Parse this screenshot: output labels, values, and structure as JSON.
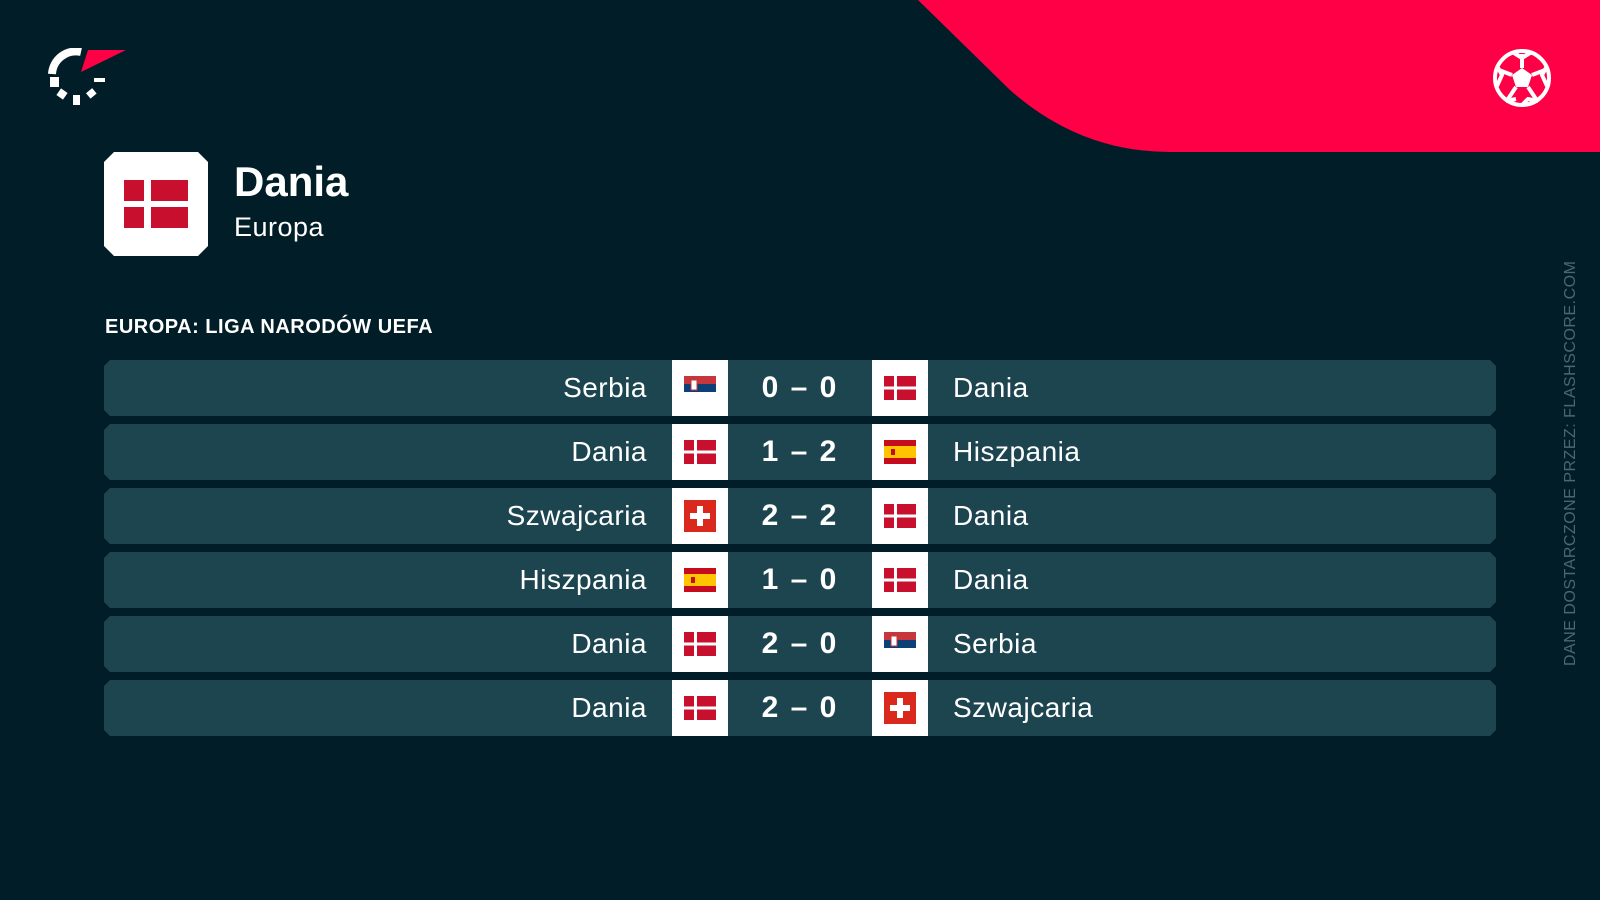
{
  "brand": {
    "accent": "#ff0046",
    "background": "#011e28",
    "row_color": "#1d4550"
  },
  "header": {
    "team": "Dania",
    "region": "Europa",
    "team_flag": "denmark"
  },
  "competition": "EUROPA: LIGA NARODÓW UEFA",
  "matches": [
    {
      "home": "Serbia",
      "home_flag": "serbia",
      "score": "0 – 0",
      "away": "Dania",
      "away_flag": "denmark"
    },
    {
      "home": "Dania",
      "home_flag": "denmark",
      "score": "1 – 2",
      "away": "Hiszpania",
      "away_flag": "spain"
    },
    {
      "home": "Szwajcaria",
      "home_flag": "switzerland",
      "score": "2 – 2",
      "away": "Dania",
      "away_flag": "denmark"
    },
    {
      "home": "Hiszpania",
      "home_flag": "spain",
      "score": "1 – 0",
      "away": "Dania",
      "away_flag": "denmark"
    },
    {
      "home": "Dania",
      "home_flag": "denmark",
      "score": "2 – 0",
      "away": "Serbia",
      "away_flag": "serbia"
    },
    {
      "home": "Dania",
      "home_flag": "denmark",
      "score": "2 – 0",
      "away": "Szwajcaria",
      "away_flag": "switzerland"
    }
  ],
  "credit": "DANE DOSTARCZONE PRZEZ: FLASHSCORE.COM"
}
